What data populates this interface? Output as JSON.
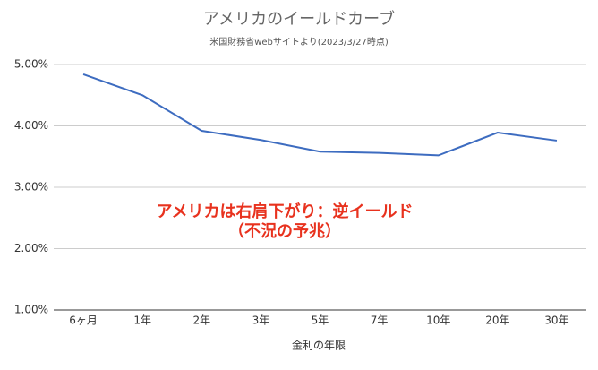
{
  "chart_data": {
    "type": "line",
    "title": "アメリカのイールドカーブ",
    "subtitle": "米国財務省webサイトより(2023/3/27時点)",
    "x_label": "金利の年限",
    "categories": [
      "6ヶ月",
      "1年",
      "2年",
      "3年",
      "5年",
      "7年",
      "10年",
      "20年",
      "30年"
    ],
    "series": [
      {
        "color": "#3d6cc0",
        "values": [
          4.84,
          4.5,
          3.92,
          3.77,
          3.58,
          3.56,
          3.52,
          3.89,
          3.76
        ]
      }
    ],
    "ylim": [
      1,
      5
    ],
    "yticks": [
      {
        "value": 1,
        "label": "1.00%"
      },
      {
        "value": 2,
        "label": "2.00%"
      },
      {
        "value": 3,
        "label": "3.00%"
      },
      {
        "value": 4,
        "label": "4.00%"
      },
      {
        "value": 5,
        "label": "5.00%"
      }
    ],
    "grid": true,
    "annotations": [
      "アメリカは右肩下がり：逆イールド",
      "（不況の予兆）"
    ],
    "annotation_color": "#e8321e"
  }
}
